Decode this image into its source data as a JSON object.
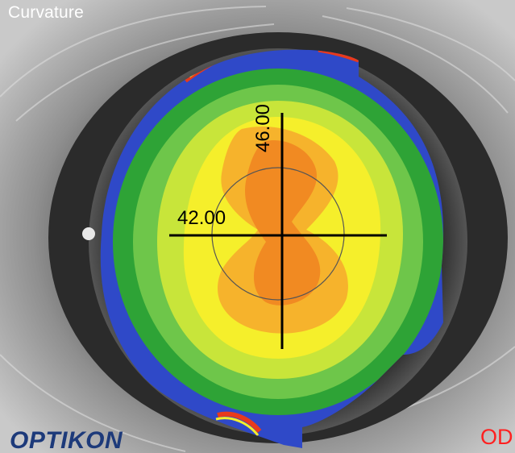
{
  "view": {
    "title": "Curvature",
    "eye_code": "OD",
    "brand": "OPTIKON"
  },
  "measurements": {
    "horizontal_value": "42.00",
    "vertical_value": "46.00"
  },
  "colors": {
    "blue": "#2f49c8",
    "green_dark": "#2ea336",
    "green": "#6ec64a",
    "yellow_green": "#c8e53a",
    "yellow": "#f5ef2b",
    "orange_light": "#f6b32c",
    "orange": "#f18a22",
    "red": "#e83a1c",
    "brand": "#1d3a7a",
    "eye_code": "#ff2020"
  }
}
